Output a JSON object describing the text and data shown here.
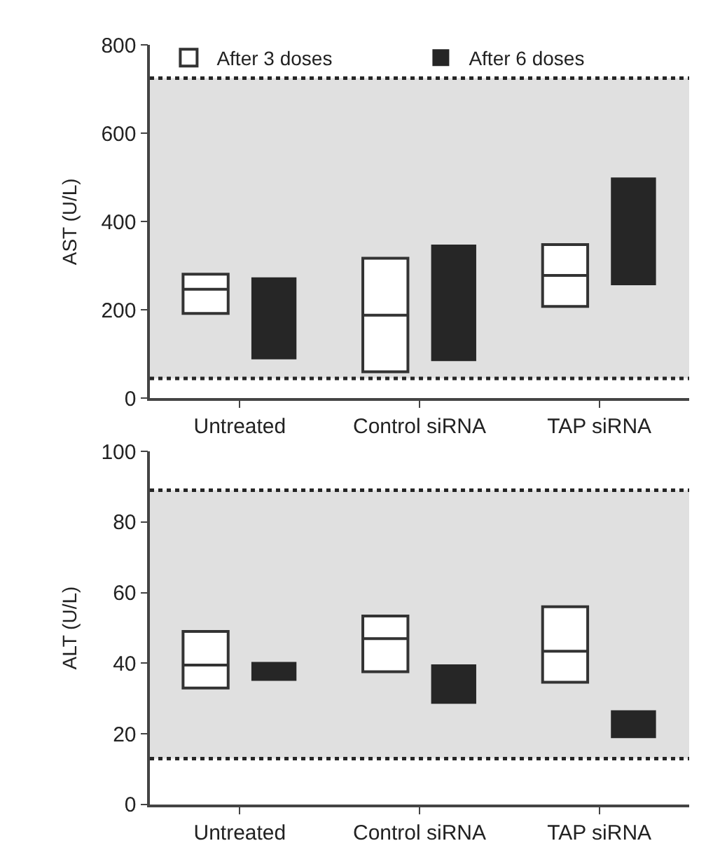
{
  "chart_data": [
    {
      "type": "box",
      "ylabel": "AST (U/L)",
      "categories": [
        "Untreated",
        "Control siRNA",
        "TAP siRNA"
      ],
      "ylim": [
        0,
        800
      ],
      "yticks": [
        0,
        200,
        400,
        600,
        800
      ],
      "grid": false,
      "legend": "top",
      "series": [
        {
          "name": "After 3 doses",
          "color": "#ffffff",
          "boxes": [
            {
              "low": 192,
              "q1": 192,
              "median": 247,
              "q3": 281,
              "high": 281
            },
            {
              "low": 60,
              "q1": 60,
              "median": 188,
              "q3": 317,
              "high": 317
            },
            {
              "low": 208,
              "q1": 208,
              "median": 278,
              "q3": 348,
              "high": 348
            }
          ]
        },
        {
          "name": "After 6 doses",
          "type": "bar",
          "color": "#262626",
          "base": [
            88,
            84,
            256
          ],
          "values": [
            186,
            264,
            244
          ]
        }
      ],
      "bands": [
        {
          "axis": "y",
          "from": 45,
          "to": 725,
          "color": "#e0e0e0"
        }
      ],
      "ref_lines": [
        {
          "axis": "y",
          "value": 725,
          "line_style": "dotted",
          "color": "#262626"
        },
        {
          "axis": "y",
          "value": 45,
          "line_style": "dotted",
          "color": "#262626"
        }
      ]
    },
    {
      "type": "box",
      "ylabel": "ALT (U/L)",
      "categories": [
        "Untreated",
        "Control siRNA",
        "TAP siRNA"
      ],
      "ylim": [
        0,
        100
      ],
      "yticks": [
        0,
        20,
        40,
        60,
        80,
        100
      ],
      "grid": false,
      "legend": false,
      "series": [
        {
          "color": "#ffffff",
          "boxes": [
            {
              "low": 33,
              "q1": 33,
              "median": 39.5,
              "q3": 49,
              "high": 49
            },
            {
              "low": 37.6,
              "q1": 37.6,
              "median": 47,
              "q3": 53.4,
              "high": 53.4
            },
            {
              "low": 34.6,
              "q1": 34.6,
              "median": 43.4,
              "q3": 56,
              "high": 56
            }
          ]
        },
        {
          "type": "bar",
          "color": "#262626",
          "base": [
            35,
            28.5,
            18.8
          ],
          "values": [
            5.4,
            11.2,
            7.9
          ]
        }
      ],
      "bands": [
        {
          "axis": "y",
          "from": 13,
          "to": 89,
          "color": "#e0e0e0"
        }
      ],
      "ref_lines": [
        {
          "axis": "y",
          "value": 89,
          "line_style": "dotted",
          "color": "#262626"
        },
        {
          "axis": "y",
          "value": 13,
          "line_style": "dotted",
          "color": "#262626"
        }
      ]
    }
  ]
}
